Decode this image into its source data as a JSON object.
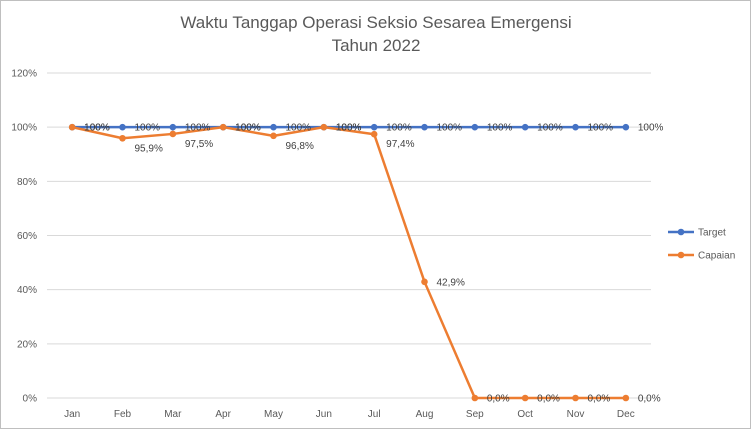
{
  "chart_data": {
    "type": "line",
    "title_lines": [
      "Waktu Tanggap Operasi Seksio Sesarea Emergensi",
      "Tahun 2022"
    ],
    "categories": [
      "Jan",
      "Feb",
      "Mar",
      "Apr",
      "May",
      "Jun",
      "Jul",
      "Aug",
      "Sep",
      "Oct",
      "Nov",
      "Dec"
    ],
    "y_ticks": [
      "0%",
      "20%",
      "40%",
      "60%",
      "80%",
      "100%",
      "120%"
    ],
    "ylim": [
      0,
      120
    ],
    "grid": true,
    "legend_position": "right",
    "series": [
      {
        "name": "Target",
        "color": "#4472c4",
        "values": [
          100,
          100,
          100,
          100,
          100,
          100,
          100,
          100,
          100,
          100,
          100,
          100
        ],
        "labels": [
          "100%",
          "100%",
          "100%",
          "100%",
          "100%",
          "100%",
          "100%",
          "100%",
          "100%",
          "100%",
          "100%",
          "100%"
        ]
      },
      {
        "name": "Capaian",
        "color": "#ed7d31",
        "values": [
          100,
          95.9,
          97.5,
          100,
          96.8,
          100,
          97.4,
          42.9,
          0,
          0,
          0,
          0
        ],
        "labels": [
          "100%",
          "95,9%",
          "97,5%",
          "100%",
          "96,8%",
          "100%",
          "97,4%",
          "42,9%",
          "0,0%",
          "0,0%",
          "0,0%",
          "0,0%"
        ]
      }
    ]
  }
}
